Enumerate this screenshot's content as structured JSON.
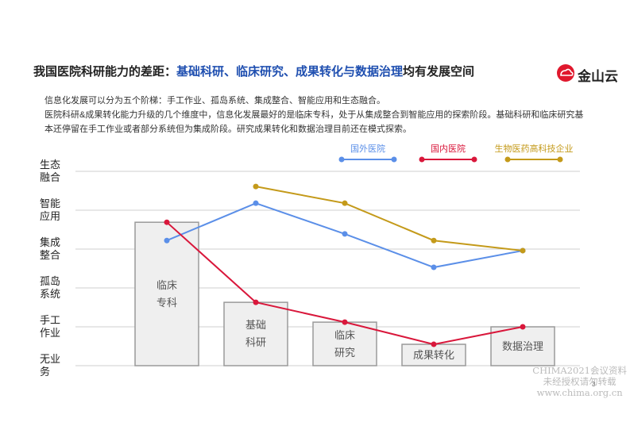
{
  "header": {
    "title_parts": [
      "我国医院科研能力的差距：",
      "基础科研、临床研究、成果转化与数据治理",
      "均有发展空间"
    ],
    "logo": "金山云"
  },
  "description": [
    "信息化发展可以分为五个阶梯：手工作业、孤岛系统、集成整合、智能应用和生态融合。",
    "医院科研&成果转化能力升级的几个维度中，信息化发展最好的是临床专科，处于从集成整合到智能应用的探索阶段。基础科研和临床研究基本还停留在手工作业或者部分系统但为集成阶段。研究成果转化和数据治理目前还在模式探索。"
  ],
  "chart_data": {
    "type": "bar-line",
    "categories": [
      "临床专科",
      "基础科研",
      "临床研究",
      "成果转化",
      "数据治理"
    ],
    "bar_values": [
      3.69,
      1.63,
      1.12,
      0.55,
      1.0
    ],
    "bar_color": "#efefef",
    "series": [
      {
        "name": "国外医院",
        "color": "#5b8fe8",
        "values": [
          3.22,
          4.18,
          3.39,
          2.53,
          2.96
        ]
      },
      {
        "name": "国内医院",
        "color": "#d9173b",
        "values": [
          3.69,
          1.63,
          1.12,
          0.55,
          1.0
        ]
      },
      {
        "name": "生物医药高科技企业",
        "color": "#c49a1a",
        "values": [
          null,
          4.61,
          4.18,
          3.22,
          2.96
        ]
      }
    ],
    "ylim": [
      0,
      5
    ],
    "yticks": [
      {
        "value": 0,
        "label": "无业务"
      },
      {
        "value": 1,
        "label": "手工作业"
      },
      {
        "value": 2,
        "label": "孤岛系统"
      },
      {
        "value": 3,
        "label": "集成整合"
      },
      {
        "value": 4,
        "label": "智能应用"
      },
      {
        "value": 5,
        "label": "生态融合"
      }
    ],
    "grid": true
  },
  "footer": {
    "page": "3",
    "watermark": [
      "CHIMA2021会议资料",
      "未经授权请勿转载",
      "www.chima.org.cn"
    ]
  }
}
